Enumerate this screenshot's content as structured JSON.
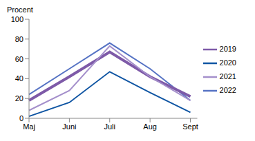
{
  "chart_data": {
    "type": "line",
    "y_label": "Procent",
    "categories": [
      "Maj",
      "Juni",
      "Juli",
      "Aug",
      "Sept"
    ],
    "series": [
      {
        "name": "2022",
        "color": "#5673c4",
        "line_style": "solid",
        "values": [
          24,
          50,
          76,
          50,
          18
        ]
      },
      {
        "name": "2019",
        "color": "#7e5aa8",
        "line_style": "bold",
        "values": [
          18,
          42,
          67,
          42,
          22
        ]
      },
      {
        "name": "2021",
        "color": "#a48fcb",
        "line_style": "solid",
        "values": [
          8,
          28,
          73,
          42,
          18
        ]
      },
      {
        "name": "2020",
        "color": "#0f55a3",
        "line_style": "solid",
        "values": [
          2,
          16,
          47,
          26,
          6
        ]
      }
    ],
    "ylim": [
      0,
      100
    ],
    "yticks": [
      0,
      20,
      40,
      60,
      80,
      100
    ],
    "grid": false,
    "legend": "right"
  }
}
